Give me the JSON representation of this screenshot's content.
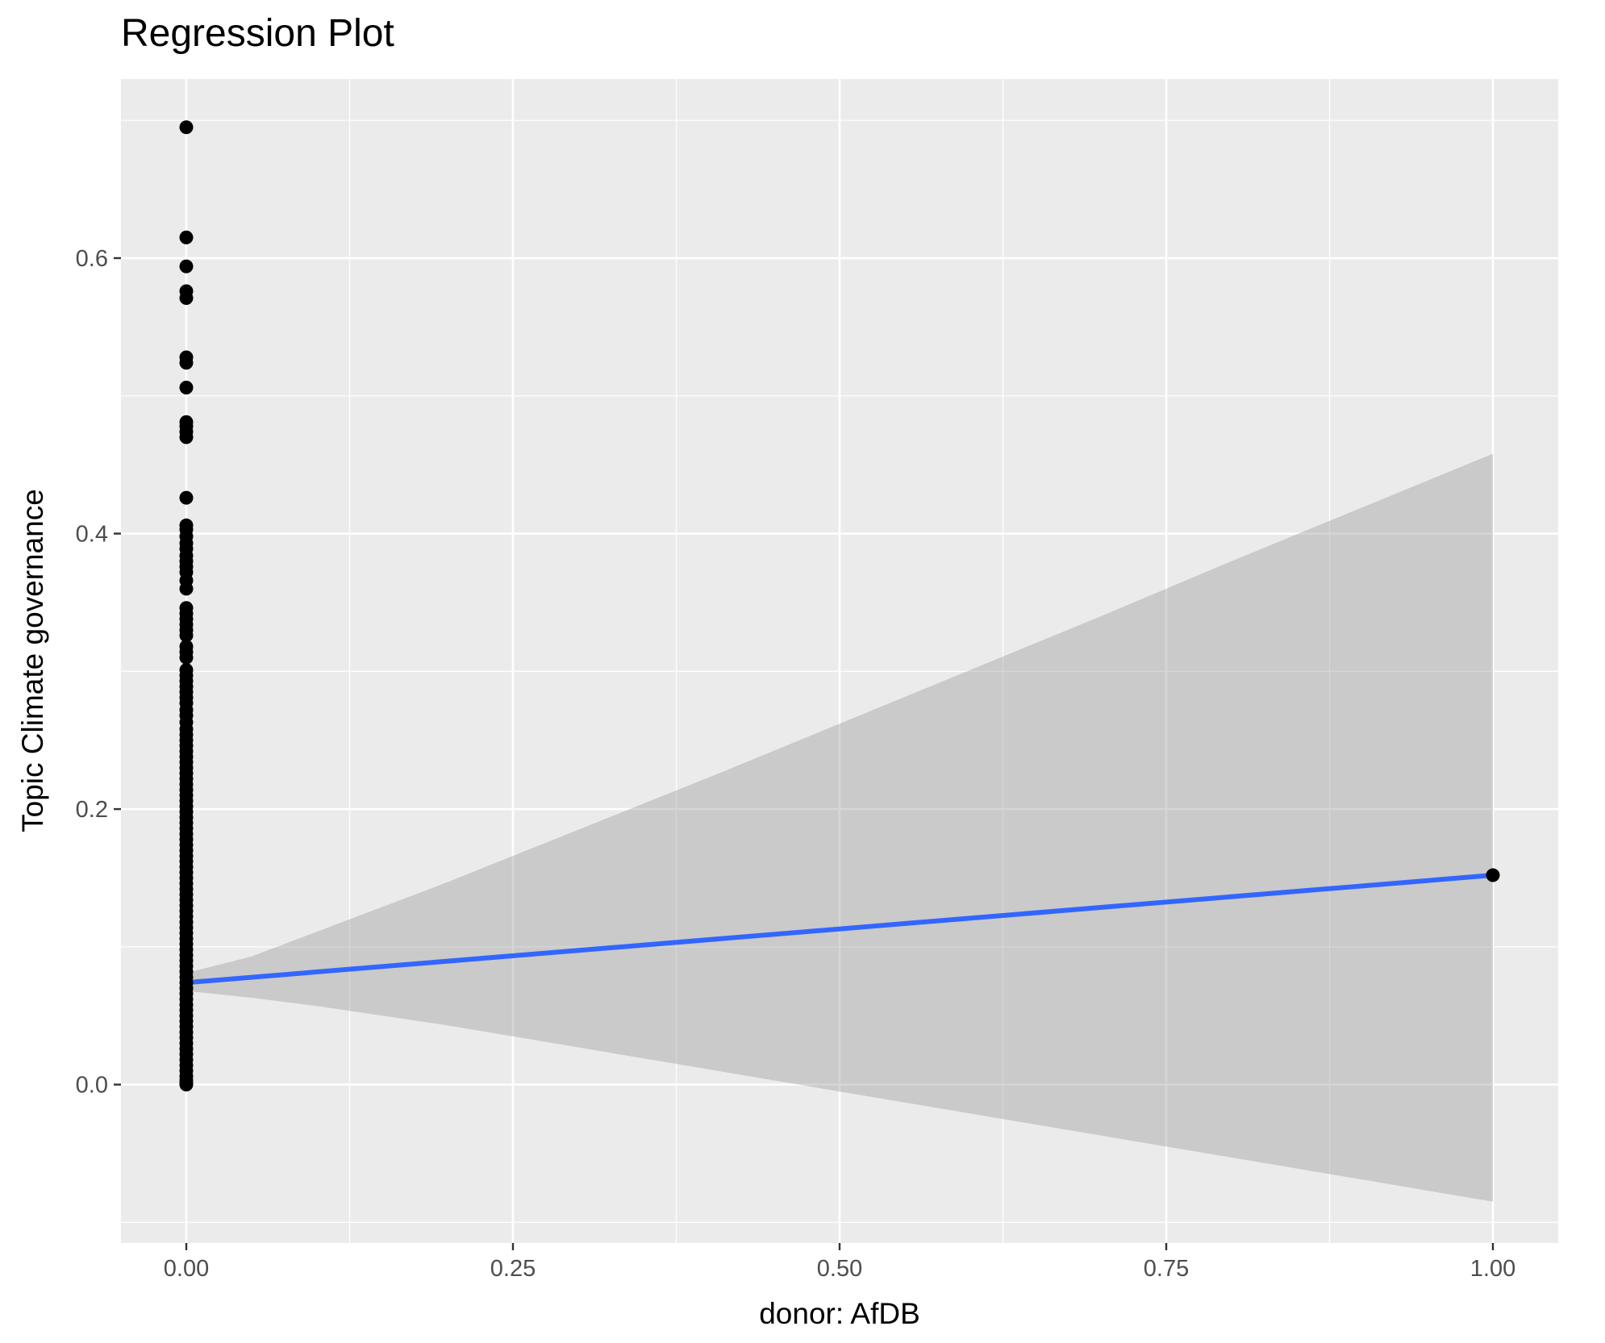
{
  "chart_data": {
    "type": "scatter",
    "title": "Regression Plot",
    "xlabel": "donor: AfDB",
    "ylabel": "Topic Climate governance",
    "xlim": [
      -0.05,
      1.05
    ],
    "ylim": [
      -0.115,
      0.73
    ],
    "x_ticks": [
      0.0,
      0.25,
      0.5,
      0.75,
      1.0
    ],
    "x_tick_labels": [
      "0.00",
      "0.25",
      "0.50",
      "0.75",
      "1.00"
    ],
    "y_ticks": [
      0.0,
      0.2,
      0.4,
      0.6
    ],
    "y_tick_labels": [
      "0.0",
      "0.2",
      "0.4",
      "0.6"
    ],
    "grid": true,
    "legend": "none",
    "points": {
      "x0": 0,
      "y_at_x0": [
        0.695,
        0.615,
        0.594,
        0.576,
        0.571,
        0.528,
        0.524,
        0.506,
        0.481,
        0.478,
        0.474,
        0.47,
        0.426,
        0.406,
        0.403,
        0.398,
        0.393,
        0.389,
        0.384,
        0.38,
        0.376,
        0.372,
        0.366,
        0.36,
        0.346,
        0.342,
        0.338,
        0.334,
        0.33,
        0.326,
        0.318,
        0.314,
        0.31,
        0.301,
        0.297,
        0.293,
        0.289,
        0.285,
        0.281,
        0.277,
        0.272,
        0.268,
        0.263,
        0.258,
        0.254,
        0.25,
        0.246,
        0.242,
        0.238,
        0.234,
        0.23,
        0.226,
        0.222,
        0.218,
        0.214,
        0.21,
        0.206,
        0.202,
        0.198,
        0.194,
        0.19,
        0.186,
        0.182,
        0.178,
        0.174,
        0.17,
        0.166,
        0.162,
        0.158,
        0.154,
        0.15,
        0.146,
        0.142,
        0.138,
        0.134,
        0.13,
        0.126,
        0.122,
        0.118,
        0.114,
        0.11,
        0.106,
        0.102,
        0.098,
        0.094,
        0.09,
        0.086,
        0.082,
        0.078,
        0.074,
        0.07,
        0.066,
        0.062,
        0.058,
        0.054,
        0.05,
        0.046,
        0.042,
        0.038,
        0.034,
        0.03,
        0.026,
        0.022,
        0.018,
        0.014,
        0.01,
        0.006,
        0.003,
        0.001,
        0.0
      ],
      "x1": 1,
      "y_at_x1": [
        0.152
      ]
    },
    "regression": {
      "x": [
        0,
        1
      ],
      "y": [
        0.074,
        0.152
      ]
    },
    "confidence_band": {
      "x": [
        0.0,
        0.05,
        0.1,
        0.2,
        0.3,
        0.4,
        0.5,
        0.6,
        0.7,
        0.8,
        0.9,
        1.0
      ],
      "upper": [
        0.081,
        0.093,
        0.111,
        0.147,
        0.185,
        0.223,
        0.262,
        0.301,
        0.34,
        0.38,
        0.419,
        0.458
      ],
      "lower": [
        0.068,
        0.063,
        0.057,
        0.043,
        0.027,
        0.011,
        -0.005,
        -0.021,
        -0.037,
        -0.053,
        -0.069,
        -0.085
      ]
    },
    "colors": {
      "panel": "#ebebeb",
      "grid": "#ffffff",
      "points": "#000000",
      "line": "#3366ff",
      "band": "#999999"
    }
  }
}
